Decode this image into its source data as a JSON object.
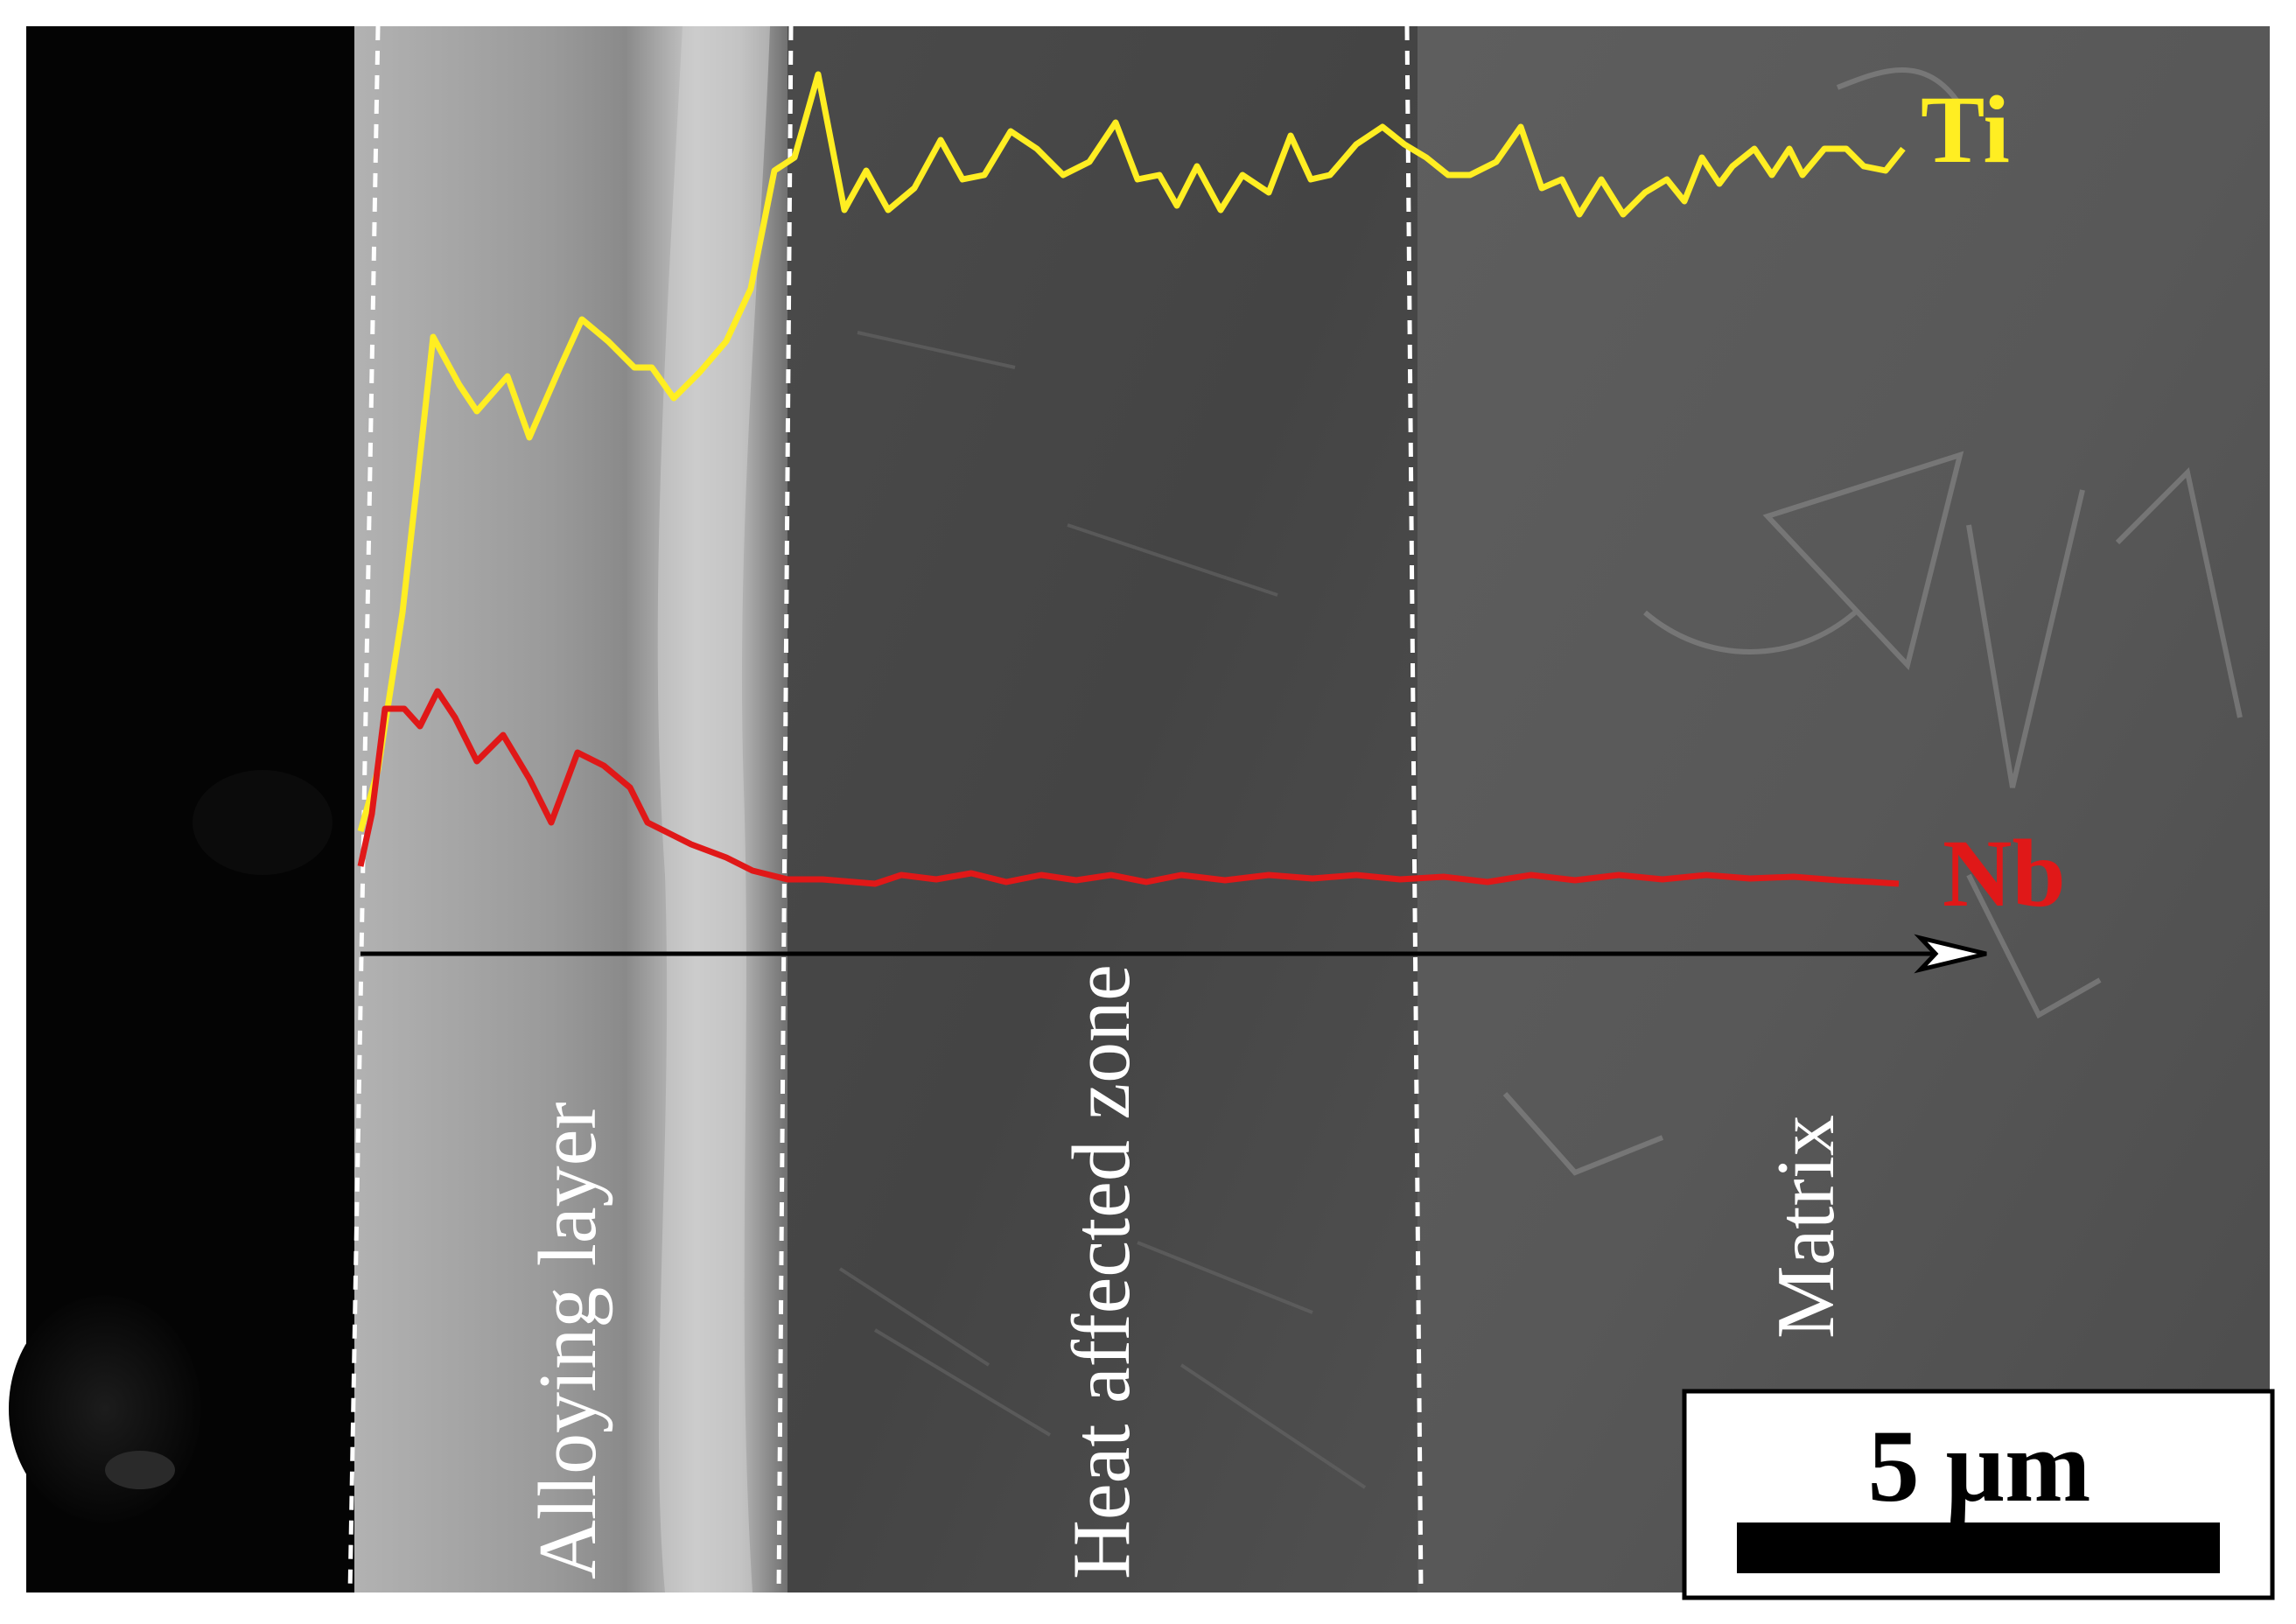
{
  "image": {
    "type": "SEM cross-section micrograph with EDS line scan overlay",
    "zones": [
      {
        "label": "Alloying layer"
      },
      {
        "label": "Heat affected zone"
      },
      {
        "label": "Matrix"
      }
    ],
    "scale_bar": {
      "label": "5 µm"
    }
  },
  "line_scan": {
    "series": [
      {
        "name": "Ti",
        "color": "#ffee22"
      },
      {
        "name": "Nb",
        "color": "#e01818"
      }
    ]
  },
  "colors": {
    "background": "#ffffff",
    "sample_dark": "#050505",
    "alloying_layer": "#a4a4a4",
    "haz": "#4a4a4a",
    "matrix": "#565656",
    "axis_arrow": "#000000"
  }
}
